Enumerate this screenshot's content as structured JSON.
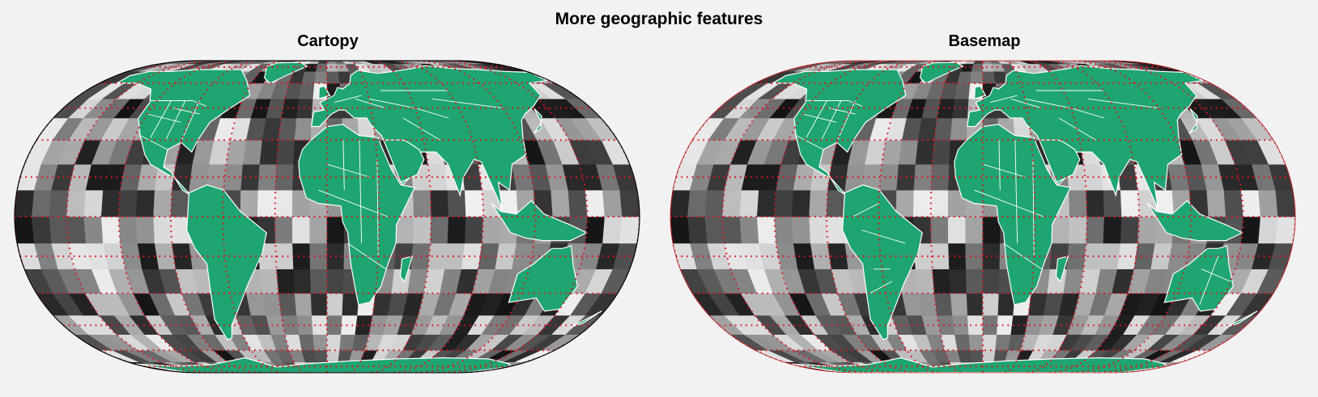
{
  "figure": {
    "title": "More geographic features"
  },
  "panels": [
    {
      "title": "Cartopy"
    },
    {
      "title": "Basemap"
    }
  ],
  "style": {
    "background": "#f2f2f2",
    "land_color": "#1ea571",
    "border_color": "#ffffff",
    "gridline_color": "#e0141e",
    "left_outline_color": "#000000",
    "right_outline_color": "#b01010",
    "colormap": "greys"
  },
  "map": {
    "projection": "robinson",
    "gridlines": {
      "meridian_step_deg": 30,
      "parallel_step_deg": 15,
      "style": "dotted"
    },
    "raster": {
      "lon_cells": 36,
      "lat_cells": 18
    }
  }
}
